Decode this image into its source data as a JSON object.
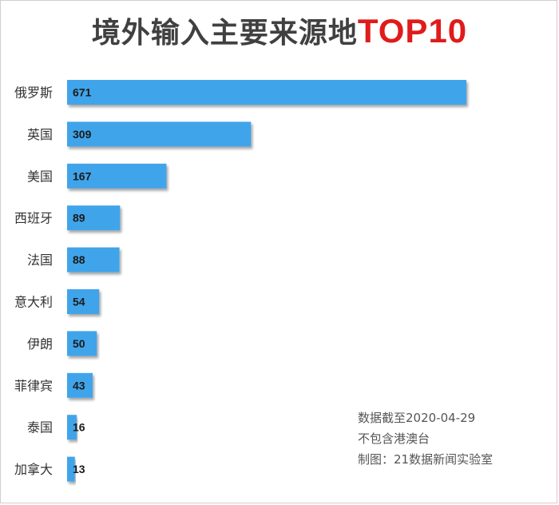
{
  "title": {
    "main": "境外输入主要来源地",
    "accent": "TOP10"
  },
  "notes": [
    "数据截至2020-04-29",
    "不包含港澳台",
    "制图：21数据新闻实验室"
  ],
  "colors": {
    "bar": "#3fa4ea",
    "title_main": "#404040",
    "title_accent": "#e01b1b"
  },
  "chart_data": {
    "type": "bar",
    "orientation": "horizontal",
    "title": "境外输入主要来源地TOP10",
    "categories": [
      "俄罗斯",
      "英国",
      "美国",
      "西班牙",
      "法国",
      "意大利",
      "伊朗",
      "菲律宾",
      "泰国",
      "加拿大"
    ],
    "values": [
      671,
      309,
      167,
      89,
      88,
      54,
      50,
      43,
      16,
      13
    ],
    "xlim": [
      0,
      671
    ],
    "grid": false,
    "data_labels": true
  }
}
